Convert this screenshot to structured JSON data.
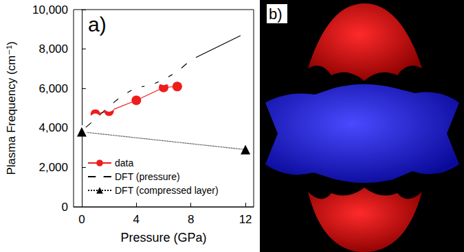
{
  "chart_data": {
    "type": "line",
    "panel_label": "a)",
    "x_label": "Pressure (GPa)",
    "y_label": "Plasma Frequency (cm⁻¹)",
    "xlim": [
      -0.6,
      12.6
    ],
    "xticks": [
      0,
      4,
      8,
      12
    ],
    "ylim": [
      0,
      10000
    ],
    "yticks": [
      0,
      2000,
      4000,
      6000,
      8000,
      10000
    ],
    "grid": false,
    "legend": "lower left",
    "series": [
      {
        "name": "data",
        "color": "#ee1c1c",
        "marker": "circle",
        "line_style": "solid",
        "x": [
          1,
          2,
          4,
          6,
          7
        ],
        "values": [
          4700,
          4850,
          5400,
          6050,
          6100
        ]
      },
      {
        "name": "DFT (pressure)",
        "color": "#000000",
        "marker": "open_circle",
        "line_style": "solid",
        "x": [
          0,
          1,
          2,
          3,
          4,
          5,
          6,
          7,
          8,
          12
        ],
        "values": [
          3850,
          4450,
          5100,
          5650,
          6050,
          6150,
          6450,
          6850,
          7450,
          8800
        ]
      },
      {
        "name": "DFT (compressed layer)",
        "color": "#000000",
        "marker": "triangle",
        "line_style": "dotted",
        "x": [
          0,
          12
        ],
        "values": [
          3800,
          2900
        ]
      }
    ]
  },
  "panel_b": {
    "label": "b)"
  }
}
